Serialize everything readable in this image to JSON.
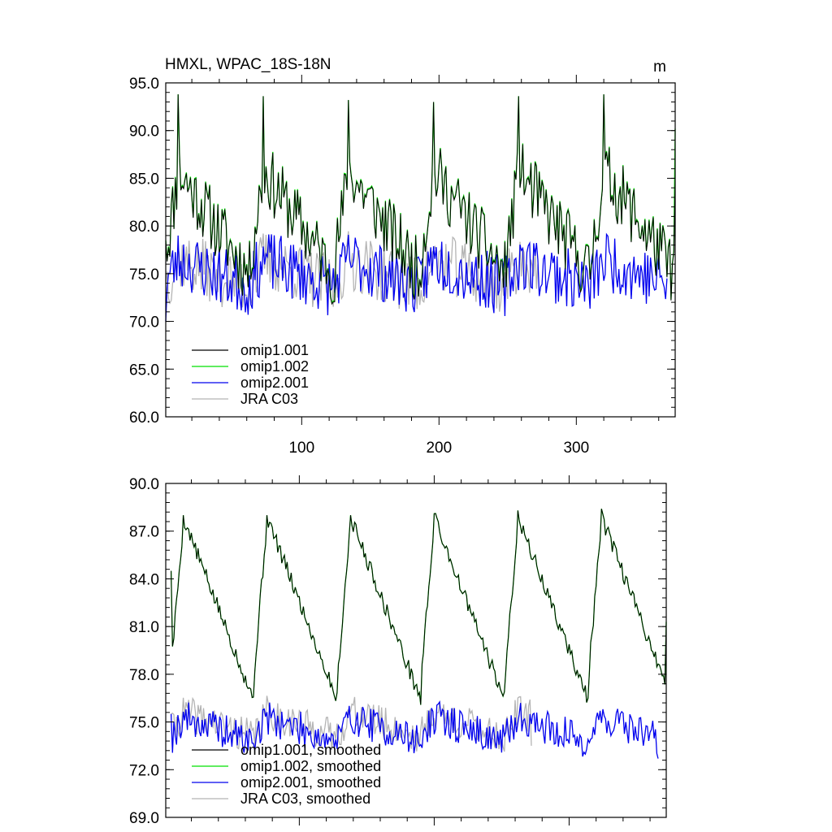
{
  "chart_data": [
    {
      "type": "line",
      "title": "HMXL, WPAC_18S-18N",
      "units": "m",
      "xlim": [
        1,
        372
      ],
      "ylim": [
        60,
        95
      ],
      "yticks": [
        "60.0",
        "65.0",
        "70.0",
        "75.0",
        "80.0",
        "85.0",
        "90.0",
        "95.0"
      ],
      "yticks_values": [
        60,
        65,
        70,
        75,
        80,
        85,
        90,
        95
      ],
      "xticks": [
        "100",
        "200",
        "300"
      ],
      "xticks_values": [
        100,
        200,
        300
      ],
      "legend": [
        "omip1.001",
        "omip1.002",
        "omip2.001",
        "JRA C03"
      ],
      "legend_placement": "bottom-left",
      "series": [
        {
          "name": "omip1.001",
          "color": "#000000",
          "x": [
            1,
            372
          ],
          "y": [
            78.5,
            84.8
          ],
          "pattern": {
            "period": 62,
            "mean": 80.2,
            "amp": 5.5,
            "noise": 3.5,
            "seed": 11,
            "peaks": [
              93.8,
              93.6,
              93.2,
              93.0,
              93.6,
              93.8
            ]
          }
        },
        {
          "name": "omip1.002",
          "color": "#00e000",
          "x": [
            1,
            372
          ],
          "y": [
            78.5,
            90.2
          ],
          "pattern": {
            "period": 62,
            "mean": 80.3,
            "amp": 5.5,
            "noise": 3.5,
            "seed": 11,
            "peaks": [
              93.8,
              93.6,
              93.2,
              93.0,
              93.6,
              93.8
            ]
          }
        },
        {
          "name": "omip2.001",
          "color": "#0000ee",
          "x": [
            1,
            366
          ],
          "y": [
            70.0,
            74.5
          ],
          "pattern": {
            "period": 62,
            "mean": 75.0,
            "amp": 1.5,
            "noise": 3.2,
            "seed": 23,
            "min": 64.8,
            "max": 84.0
          }
        },
        {
          "name": "JRA C03",
          "color": "#b4b4b4",
          "x": [
            1,
            272
          ],
          "y": [
            74.0,
            76.0
          ],
          "pattern": {
            "period": 62,
            "mean": 75.0,
            "amp": 1.5,
            "noise": 3.2,
            "seed": 37,
            "min": 64.3,
            "max": 83.5
          }
        }
      ]
    },
    {
      "type": "line",
      "title": "",
      "xlim": [
        1,
        372
      ],
      "ylim": [
        69,
        90
      ],
      "yticks": [
        "69.0",
        "72.0",
        "75.0",
        "78.0",
        "81.0",
        "84.0",
        "87.0",
        "90.0"
      ],
      "yticks_values": [
        69,
        72,
        75,
        78,
        81,
        84,
        87,
        90
      ],
      "xticks": [],
      "xticks_values": [
        100,
        200,
        300
      ],
      "legend": [
        "omip1.001, smoothed",
        "omip1.002, smoothed",
        "omip2.001, smoothed",
        "JRA C03, smoothed"
      ],
      "legend_placement": "bottom-left",
      "series": [
        {
          "name": "omip1.001, smoothed",
          "color": "#000000",
          "x": [
            5,
            372
          ],
          "y": [
            84.5,
            81.3
          ],
          "pattern": {
            "period": 62,
            "mean": 82.0,
            "amp": 5.8,
            "noise": 0.5,
            "seed": 5,
            "peaks": [
              88.0,
              88.0,
              88.0,
              88.1,
              88.3,
              88.4
            ]
          }
        },
        {
          "name": "omip1.002, smoothed",
          "color": "#00e000",
          "x": [
            5,
            372
          ],
          "y": [
            84.5,
            81.3
          ],
          "pattern": {
            "period": 62,
            "mean": 82.0,
            "amp": 5.8,
            "noise": 0.5,
            "seed": 5,
            "peaks": [
              88.0,
              88.0,
              88.0,
              88.1,
              88.3,
              88.4
            ]
          }
        },
        {
          "name": "omip2.001, smoothed",
          "color": "#0000ee",
          "x": [
            5,
            366
          ],
          "y": [
            75.5,
            72.7
          ],
          "pattern": {
            "period": 62,
            "mean": 74.5,
            "amp": 0.8,
            "noise": 1.1,
            "seed": 19,
            "min": 71.1,
            "max": 77.5
          }
        },
        {
          "name": "JRA C03, smoothed",
          "color": "#b4b4b4",
          "x": [
            5,
            272
          ],
          "y": [
            75.5,
            73.5
          ],
          "pattern": {
            "period": 62,
            "mean": 74.8,
            "amp": 0.8,
            "noise": 1.1,
            "seed": 41,
            "min": 70.8,
            "max": 77.5
          }
        }
      ]
    }
  ]
}
